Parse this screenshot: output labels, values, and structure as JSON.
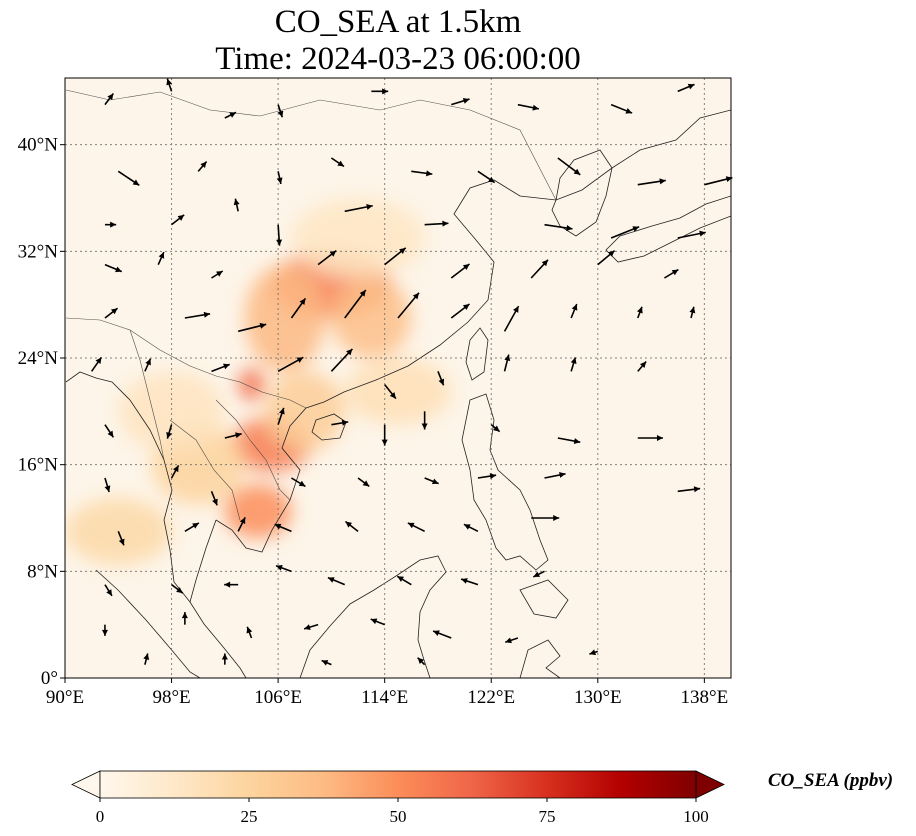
{
  "title": {
    "line1": "CO_SEA at 1.5km",
    "line2": "Time: 2024-03-23 06:00:00"
  },
  "map": {
    "lon_range": [
      90,
      140
    ],
    "lat_range": [
      0,
      45
    ],
    "lon_ticks": [
      {
        "value": 90,
        "label": "90°E"
      },
      {
        "value": 98,
        "label": "98°E"
      },
      {
        "value": 106,
        "label": "106°E"
      },
      {
        "value": 114,
        "label": "114°E"
      },
      {
        "value": 122,
        "label": "122°E"
      },
      {
        "value": 130,
        "label": "130°E"
      },
      {
        "value": 138,
        "label": "138°E"
      }
    ],
    "lat_ticks": [
      {
        "value": 0,
        "label": "0°"
      },
      {
        "value": 8,
        "label": "8°N"
      },
      {
        "value": 16,
        "label": "16°N"
      },
      {
        "value": 24,
        "label": "24°N"
      },
      {
        "value": 32,
        "label": "32°N"
      },
      {
        "value": 40,
        "label": "40°N"
      }
    ],
    "gridlines": true,
    "background_color": "#fdf5e9",
    "coastline_color": "#222222"
  },
  "colorbar": {
    "label": "CO_SEA (ppbv)",
    "min": 0,
    "max": 100,
    "ticks": [
      0,
      25,
      50,
      75,
      100
    ],
    "extend": "both",
    "colormap": "OrRd",
    "stops": [
      "#fff7ec",
      "#fee8c8",
      "#fdd49e",
      "#fdbb84",
      "#fc8d59",
      "#ef6548",
      "#d7301f",
      "#b30000",
      "#7f0000"
    ]
  },
  "plumes": [
    {
      "lon": 110,
      "lat": 29.5,
      "rlon": 4.5,
      "rlat": 2.5,
      "value": 55
    },
    {
      "lon": 106.5,
      "lat": 27,
      "rlon": 3,
      "rlat": 4,
      "value": 38
    },
    {
      "lon": 113,
      "lat": 27,
      "rlon": 3,
      "rlat": 3,
      "value": 35
    },
    {
      "lon": 104,
      "lat": 22,
      "rlon": 1,
      "rlat": 1.2,
      "value": 60
    },
    {
      "lon": 105.5,
      "lat": 17.5,
      "rlon": 3,
      "rlat": 2,
      "value": 55
    },
    {
      "lon": 104.5,
      "lat": 12.5,
      "rlon": 2.5,
      "rlat": 2,
      "value": 50
    },
    {
      "lon": 100,
      "lat": 16,
      "rlon": 3.5,
      "rlat": 3,
      "value": 25
    },
    {
      "lon": 94,
      "lat": 11,
      "rlon": 4,
      "rlat": 2.5,
      "value": 22
    },
    {
      "lon": 108,
      "lat": 20,
      "rlon": 3,
      "rlat": 3,
      "value": 28
    },
    {
      "lon": 98,
      "lat": 20,
      "rlon": 4,
      "rlat": 3,
      "value": 15
    },
    {
      "lon": 115,
      "lat": 21.5,
      "rlon": 4,
      "rlat": 2.5,
      "value": 18
    },
    {
      "lon": 112,
      "lat": 33,
      "rlon": 5,
      "rlat": 3,
      "value": 14
    }
  ],
  "wind_vectors": [
    {
      "lon": 93,
      "lat": 43,
      "u": 0.6,
      "v": 0.8
    },
    {
      "lon": 98,
      "lat": 44,
      "u": -0.3,
      "v": 0.9
    },
    {
      "lon": 102,
      "lat": 42,
      "u": 0.8,
      "v": 0.4
    },
    {
      "lon": 106,
      "lat": 43,
      "u": 0.3,
      "v": -0.9
    },
    {
      "lon": 113,
      "lat": 44,
      "u": 1.2,
      "v": 0.0
    },
    {
      "lon": 119,
      "lat": 43,
      "u": 1.3,
      "v": 0.4
    },
    {
      "lon": 124,
      "lat": 43,
      "u": 1.5,
      "v": -0.3
    },
    {
      "lon": 131,
      "lat": 43,
      "u": 1.5,
      "v": -0.6
    },
    {
      "lon": 136,
      "lat": 44,
      "u": 1.2,
      "v": 0.5
    },
    {
      "lon": 94,
      "lat": 38,
      "u": 1.5,
      "v": -1.0
    },
    {
      "lon": 100,
      "lat": 38,
      "u": 0.6,
      "v": 0.7
    },
    {
      "lon": 106,
      "lat": 38,
      "u": 0.2,
      "v": -0.9
    },
    {
      "lon": 110,
      "lat": 39,
      "u": 0.9,
      "v": -0.6
    },
    {
      "lon": 116,
      "lat": 38,
      "u": 1.5,
      "v": -0.2
    },
    {
      "lon": 121,
      "lat": 38,
      "u": 1.2,
      "v": -0.8
    },
    {
      "lon": 127,
      "lat": 39,
      "u": 1.6,
      "v": -1.2
    },
    {
      "lon": 133,
      "lat": 37,
      "u": 2.0,
      "v": 0.3
    },
    {
      "lon": 138,
      "lat": 37,
      "u": 2.0,
      "v": 0.5
    },
    {
      "lon": 93,
      "lat": 34,
      "u": 0.8,
      "v": 0.0
    },
    {
      "lon": 98,
      "lat": 34,
      "u": 0.9,
      "v": 0.7
    },
    {
      "lon": 103,
      "lat": 35,
      "u": -0.2,
      "v": 0.9
    },
    {
      "lon": 106,
      "lat": 34,
      "u": 0.1,
      "v": -1.5
    },
    {
      "lon": 111,
      "lat": 35,
      "u": 2.0,
      "v": 0.4
    },
    {
      "lon": 117,
      "lat": 34,
      "u": 1.7,
      "v": 0.1
    },
    {
      "lon": 126,
      "lat": 34,
      "u": 2.0,
      "v": -0.3
    },
    {
      "lon": 131,
      "lat": 33,
      "u": 2.0,
      "v": 0.8
    },
    {
      "lon": 136,
      "lat": 33,
      "u": 2.0,
      "v": 0.4
    },
    {
      "lon": 93,
      "lat": 31,
      "u": 1.2,
      "v": -0.5
    },
    {
      "lon": 97,
      "lat": 31,
      "u": 0.4,
      "v": 0.9
    },
    {
      "lon": 101,
      "lat": 30,
      "u": 0.8,
      "v": 0.5
    },
    {
      "lon": 109,
      "lat": 31,
      "u": 1.3,
      "v": 1.0
    },
    {
      "lon": 114,
      "lat": 31,
      "u": 1.5,
      "v": 1.2
    },
    {
      "lon": 119,
      "lat": 30,
      "u": 1.3,
      "v": 1.0
    },
    {
      "lon": 125,
      "lat": 30,
      "u": 1.2,
      "v": 1.3
    },
    {
      "lon": 130,
      "lat": 31,
      "u": 1.2,
      "v": 1.0
    },
    {
      "lon": 135,
      "lat": 30,
      "u": 1.0,
      "v": 0.6
    },
    {
      "lon": 93,
      "lat": 27,
      "u": 0.9,
      "v": 0.7
    },
    {
      "lon": 99,
      "lat": 27,
      "u": 1.8,
      "v": 0.3
    },
    {
      "lon": 103,
      "lat": 26,
      "u": 2.0,
      "v": 0.5
    },
    {
      "lon": 107,
      "lat": 27,
      "u": 1.0,
      "v": 1.4
    },
    {
      "lon": 111,
      "lat": 27,
      "u": 1.5,
      "v": 2.0
    },
    {
      "lon": 115,
      "lat": 27,
      "u": 1.5,
      "v": 1.8
    },
    {
      "lon": 119,
      "lat": 27,
      "u": 1.3,
      "v": 1.0
    },
    {
      "lon": 123,
      "lat": 26,
      "u": 1.0,
      "v": 1.8
    },
    {
      "lon": 128,
      "lat": 27,
      "u": 0.4,
      "v": 1.0
    },
    {
      "lon": 133,
      "lat": 27,
      "u": 0.3,
      "v": 0.8
    },
    {
      "lon": 137,
      "lat": 27,
      "u": 0.2,
      "v": 0.8
    },
    {
      "lon": 92,
      "lat": 23,
      "u": 0.7,
      "v": 1.0
    },
    {
      "lon": 96,
      "lat": 23,
      "u": 0.4,
      "v": 0.9
    },
    {
      "lon": 101,
      "lat": 23,
      "u": 1.3,
      "v": 0.5
    },
    {
      "lon": 106,
      "lat": 23,
      "u": 1.8,
      "v": 1.0
    },
    {
      "lon": 110,
      "lat": 23,
      "u": 1.5,
      "v": 1.6
    },
    {
      "lon": 114,
      "lat": 22,
      "u": 0.8,
      "v": -1.0
    },
    {
      "lon": 118,
      "lat": 23,
      "u": 0.4,
      "v": -1.0
    },
    {
      "lon": 123,
      "lat": 23,
      "u": 0.3,
      "v": 1.2
    },
    {
      "lon": 128,
      "lat": 23,
      "u": 0.3,
      "v": 1.0
    },
    {
      "lon": 133,
      "lat": 23,
      "u": 0.6,
      "v": 0.7
    },
    {
      "lon": 93,
      "lat": 19,
      "u": 0.6,
      "v": -0.9
    },
    {
      "lon": 98,
      "lat": 19,
      "u": -0.3,
      "v": -1.0
    },
    {
      "lon": 102,
      "lat": 18,
      "u": 1.2,
      "v": 0.3
    },
    {
      "lon": 106,
      "lat": 19,
      "u": 0.4,
      "v": 1.2
    },
    {
      "lon": 110,
      "lat": 19,
      "u": 1.2,
      "v": 0.2
    },
    {
      "lon": 114,
      "lat": 19,
      "u": 0.0,
      "v": -1.5
    },
    {
      "lon": 117,
      "lat": 20,
      "u": 0.0,
      "v": -1.3
    },
    {
      "lon": 122,
      "lat": 19,
      "u": 0.6,
      "v": -0.5
    },
    {
      "lon": 127,
      "lat": 18,
      "u": 1.6,
      "v": -0.3
    },
    {
      "lon": 133,
      "lat": 18,
      "u": 1.8,
      "v": 0.0
    },
    {
      "lon": 93,
      "lat": 15,
      "u": 0.3,
      "v": -1.0
    },
    {
      "lon": 98,
      "lat": 15,
      "u": 0.5,
      "v": 0.9
    },
    {
      "lon": 101,
      "lat": 14,
      "u": 0.4,
      "v": -1.0
    },
    {
      "lon": 107,
      "lat": 15,
      "u": 1.0,
      "v": -0.6
    },
    {
      "lon": 112,
      "lat": 15,
      "u": 0.8,
      "v": -0.6
    },
    {
      "lon": 117,
      "lat": 15,
      "u": 1.0,
      "v": -0.4
    },
    {
      "lon": 121,
      "lat": 15,
      "u": 1.3,
      "v": 0.2
    },
    {
      "lon": 126,
      "lat": 15,
      "u": 1.5,
      "v": 0.3
    },
    {
      "lon": 136,
      "lat": 14,
      "u": 1.6,
      "v": 0.2
    },
    {
      "lon": 94,
      "lat": 11,
      "u": 0.4,
      "v": -1.0
    },
    {
      "lon": 99,
      "lat": 11,
      "u": 1.0,
      "v": 0.6
    },
    {
      "lon": 103,
      "lat": 11,
      "u": 0.5,
      "v": 1.0
    },
    {
      "lon": 107,
      "lat": 11,
      "u": -1.2,
      "v": 0.5
    },
    {
      "lon": 112,
      "lat": 11,
      "u": -0.9,
      "v": 0.7
    },
    {
      "lon": 117,
      "lat": 11,
      "u": -1.2,
      "v": 0.6
    },
    {
      "lon": 121,
      "lat": 11,
      "u": -1.0,
      "v": 0.5
    },
    {
      "lon": 125,
      "lat": 12,
      "u": 2.0,
      "v": 0.0
    },
    {
      "lon": 93,
      "lat": 7,
      "u": 0.5,
      "v": -0.8
    },
    {
      "lon": 98,
      "lat": 7,
      "u": 0.8,
      "v": -0.6
    },
    {
      "lon": 103,
      "lat": 7,
      "u": -1.0,
      "v": 0.0
    },
    {
      "lon": 107,
      "lat": 8,
      "u": -1.1,
      "v": 0.4
    },
    {
      "lon": 111,
      "lat": 7,
      "u": -1.2,
      "v": 0.5
    },
    {
      "lon": 116,
      "lat": 7,
      "u": -1.0,
      "v": 0.6
    },
    {
      "lon": 121,
      "lat": 7,
      "u": -1.2,
      "v": 0.4
    },
    {
      "lon": 126,
      "lat": 8,
      "u": -0.8,
      "v": -0.4
    },
    {
      "lon": 93,
      "lat": 4,
      "u": 0.0,
      "v": -0.8
    },
    {
      "lon": 99,
      "lat": 4,
      "u": 0.0,
      "v": 0.9
    },
    {
      "lon": 104,
      "lat": 3,
      "u": -0.3,
      "v": 0.8
    },
    {
      "lon": 109,
      "lat": 4,
      "u": -1.0,
      "v": -0.3
    },
    {
      "lon": 114,
      "lat": 4,
      "u": -1.0,
      "v": 0.4
    },
    {
      "lon": 119,
      "lat": 3,
      "u": -1.3,
      "v": 0.5
    },
    {
      "lon": 124,
      "lat": 3,
      "u": -0.9,
      "v": -0.3
    },
    {
      "lon": 130,
      "lat": 2,
      "u": -0.6,
      "v": -0.2
    },
    {
      "lon": 96,
      "lat": 1,
      "u": 0.2,
      "v": 0.8
    },
    {
      "lon": 102,
      "lat": 1,
      "u": 0.0,
      "v": 0.8
    },
    {
      "lon": 110,
      "lat": 1,
      "u": -0.7,
      "v": 0.3
    },
    {
      "lon": 117,
      "lat": 1,
      "u": -0.5,
      "v": 0.5
    }
  ]
}
